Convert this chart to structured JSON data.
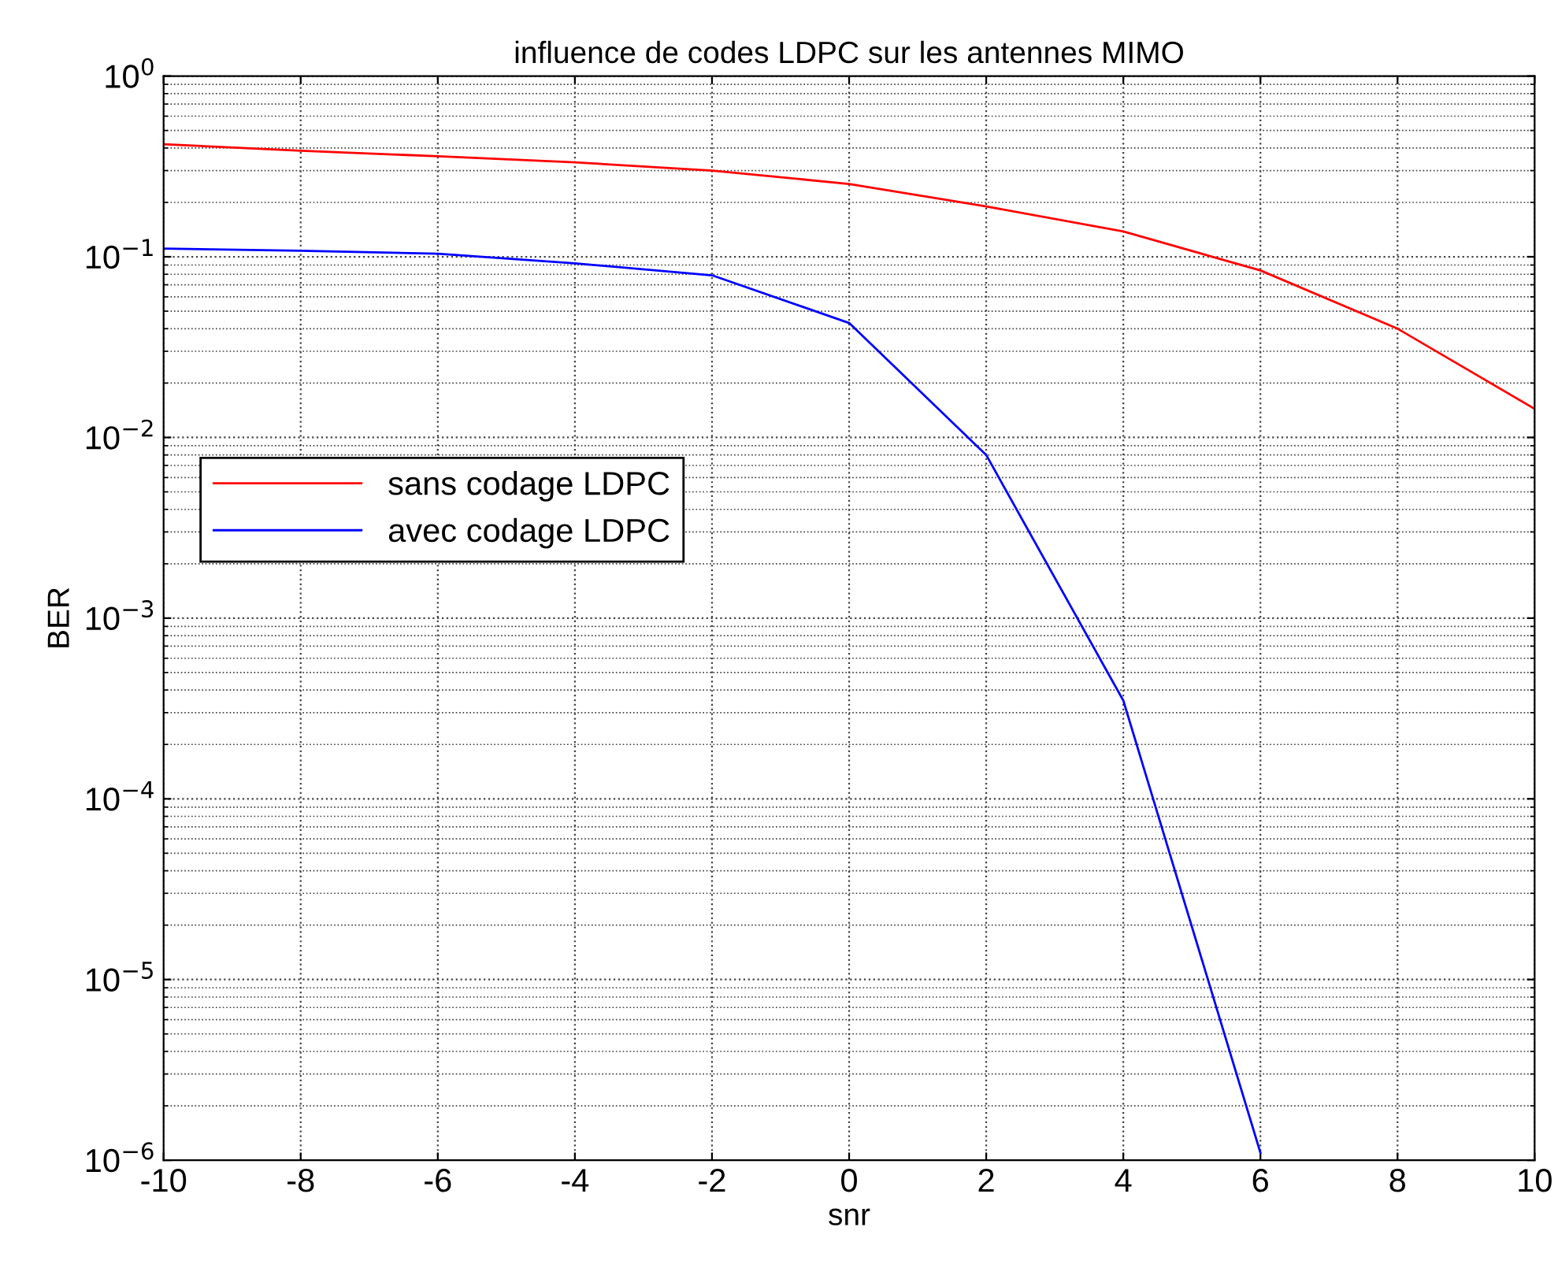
{
  "chart_data": {
    "type": "line",
    "title": "influence de codes LDPC sur les antennes MIMO",
    "xlabel": "snr",
    "ylabel": "BER",
    "x": [
      -10,
      -8,
      -6,
      -4,
      -2,
      0,
      2,
      4,
      6,
      8,
      10
    ],
    "series": [
      {
        "name": "sans codage LDPC",
        "color": "#ff0000",
        "values": [
          0.42,
          0.386,
          0.36,
          0.333,
          0.3,
          0.253,
          0.19,
          0.138,
          0.084,
          0.04,
          0.0144
        ]
      },
      {
        "name": "avec codage LDPC",
        "color": "#0000ff",
        "values": [
          0.111,
          0.108,
          0.104,
          0.092,
          0.079,
          0.043,
          0.008,
          0.00035,
          1.1e-06,
          null,
          null
        ]
      }
    ],
    "log": "y",
    "xlim": [
      -10,
      10
    ],
    "xticks": [
      -10,
      -8,
      -6,
      -4,
      -2,
      0,
      2,
      4,
      6,
      8,
      10
    ],
    "ylim": [
      1e-06,
      1
    ],
    "yticks": [
      {
        "value": 1e-06,
        "label": "10$^{−6}$"
      },
      {
        "value": 1e-05,
        "label": "10$^{−5}$"
      },
      {
        "value": 0.0001,
        "label": "10$^{−4}$"
      },
      {
        "value": 0.001,
        "label": "10$^{−3}$"
      },
      {
        "value": 0.01,
        "label": "10$^{−2}$"
      },
      {
        "value": 0.1,
        "label": "10$^{−1}$"
      },
      {
        "value": 1,
        "label": "10$^{0}$"
      }
    ],
    "grid": true,
    "legend": "left",
    "marker": "none",
    "line_style": "solid"
  }
}
